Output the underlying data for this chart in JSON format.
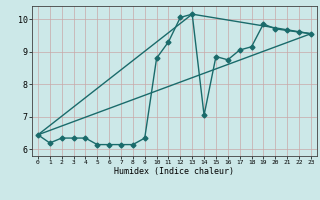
{
  "bg_color": "#cce8e8",
  "grid_color": "#c8a8a8",
  "line_color": "#1a6b6b",
  "xlabel": "Humidex (Indice chaleur)",
  "ylim": [
    5.8,
    10.4
  ],
  "xlim": [
    -0.5,
    23.5
  ],
  "yticks": [
    6,
    7,
    8,
    9,
    10
  ],
  "xticks": [
    0,
    1,
    2,
    3,
    4,
    5,
    6,
    7,
    8,
    9,
    10,
    11,
    12,
    13,
    14,
    15,
    16,
    17,
    18,
    19,
    20,
    21,
    22,
    23
  ],
  "curve1_x": [
    0,
    1,
    2,
    3,
    4,
    5,
    6,
    7,
    8,
    9,
    10,
    11,
    12,
    13,
    14,
    15,
    16,
    17,
    18,
    19,
    20,
    21,
    22,
    23
  ],
  "curve1_y": [
    6.45,
    6.2,
    6.35,
    6.35,
    6.35,
    6.15,
    6.15,
    6.15,
    6.15,
    6.35,
    8.8,
    9.3,
    10.05,
    10.15,
    7.05,
    8.85,
    8.75,
    9.05,
    9.15,
    9.85,
    9.7,
    9.65,
    9.6,
    9.55
  ],
  "curve2_x": [
    0,
    13,
    23
  ],
  "curve2_y": [
    6.45,
    10.15,
    9.55
  ],
  "curve3_x": [
    0,
    23
  ],
  "curve3_y": [
    6.45,
    9.55
  ],
  "marker_size": 2.5,
  "line_width": 1.0
}
